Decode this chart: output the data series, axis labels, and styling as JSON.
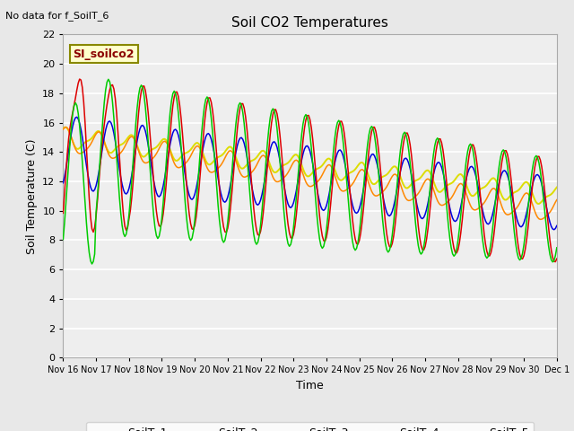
{
  "title": "Soil CO2 Temperatures",
  "xlabel": "Time",
  "ylabel": "Soil Temperature (C)",
  "no_data_text": "No data for f_SoilT_6",
  "annotation_text": "SI_soilco2",
  "ylim": [
    0,
    22
  ],
  "yticks": [
    0,
    2,
    4,
    6,
    8,
    10,
    12,
    14,
    16,
    18,
    20,
    22
  ],
  "colors": {
    "SoilT_1": "#dd0000",
    "SoilT_2": "#ff8800",
    "SoilT_3": "#dddd00",
    "SoilT_4": "#00cc00",
    "SoilT_5": "#0000dd"
  },
  "background_color": "#e8e8e8",
  "plot_bg_color": "#eeeeee",
  "xtick_labels": [
    "Nov 16",
    "Nov 17",
    "Nov 18",
    "Nov 19",
    "Nov 20",
    "Nov 21",
    "Nov 22",
    "Nov 23",
    "Nov 24",
    "Nov 25",
    "Nov 26",
    "Nov 27",
    "Nov 28",
    "Nov 29",
    "Nov 30",
    "Dec 1"
  ]
}
